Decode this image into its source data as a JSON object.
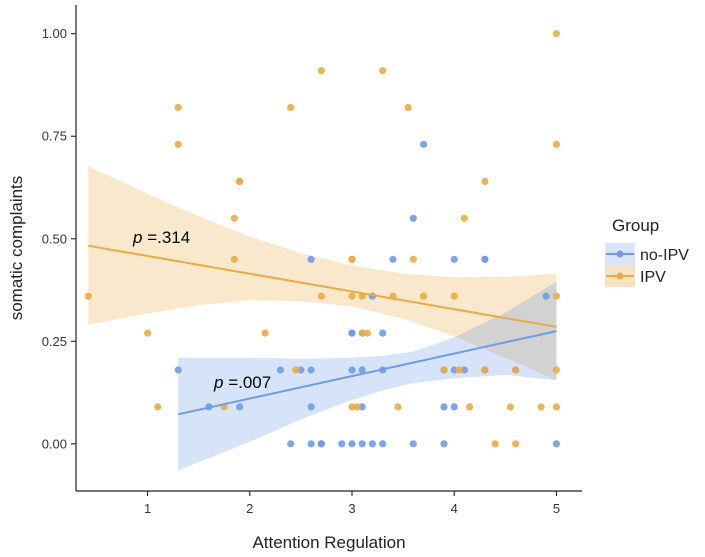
{
  "chart_data": {
    "type": "scatter",
    "title": "",
    "xlabel": "Attention Regulation",
    "ylabel": "somatic complaints",
    "xlim": [
      0.3,
      5.25
    ],
    "ylim": [
      -0.115,
      1.07
    ],
    "x_ticks": [
      1,
      2,
      3,
      4,
      5
    ],
    "y_ticks": [
      0.0,
      0.25,
      0.5,
      0.75,
      1.0
    ],
    "x_tick_labels": [
      "1",
      "2",
      "3",
      "4",
      "5"
    ],
    "y_tick_labels": [
      "0.00",
      "0.25",
      "0.50",
      "0.75",
      "1.00"
    ],
    "grid": false,
    "legend": {
      "title": "Group",
      "position": "right",
      "entries": [
        "no-IPV",
        "IPV"
      ]
    },
    "annotations": [
      {
        "prefix": "p",
        "text": " =.314",
        "x": 0.75,
        "y": 0.49,
        "series": "IPV"
      },
      {
        "prefix": "p",
        "text": " =.007",
        "x": 1.57,
        "y": 0.142,
        "series": "no-IPV"
      }
    ],
    "series": [
      {
        "name": "no-IPV",
        "color": "#6f9ce6",
        "fit": {
          "x_start": 1.3,
          "x_end": 5.0,
          "y_start": 0.072,
          "y_end": 0.275
        },
        "ci": [
          {
            "x": 1.3,
            "lo": -0.065,
            "hi": 0.21
          },
          {
            "x": 2.0,
            "lo": 0.005,
            "hi": 0.21
          },
          {
            "x": 2.5,
            "lo": 0.06,
            "hi": 0.207
          },
          {
            "x": 3.0,
            "lo": 0.107,
            "hi": 0.21
          },
          {
            "x": 3.3,
            "lo": 0.13,
            "hi": 0.215
          },
          {
            "x": 3.6,
            "lo": 0.148,
            "hi": 0.225
          },
          {
            "x": 4.0,
            "lo": 0.16,
            "hi": 0.26
          },
          {
            "x": 4.5,
            "lo": 0.168,
            "hi": 0.32
          },
          {
            "x": 5.0,
            "lo": 0.155,
            "hi": 0.395
          }
        ],
        "points": [
          [
            1.3,
            0.18
          ],
          [
            1.6,
            0.09
          ],
          [
            1.9,
            0.09
          ],
          [
            2.3,
            0.18
          ],
          [
            2.4,
            0.0
          ],
          [
            2.5,
            0.18
          ],
          [
            2.6,
            0.45
          ],
          [
            2.6,
            0.18
          ],
          [
            2.6,
            0.09
          ],
          [
            2.6,
            0.0
          ],
          [
            2.7,
            0.0
          ],
          [
            2.7,
            0.0
          ],
          [
            2.9,
            0.0
          ],
          [
            3.0,
            0.27
          ],
          [
            3.0,
            0.27
          ],
          [
            3.0,
            0.18
          ],
          [
            3.0,
            0.0
          ],
          [
            3.1,
            0.27
          ],
          [
            3.1,
            0.18
          ],
          [
            3.1,
            0.09
          ],
          [
            3.1,
            0.0
          ],
          [
            3.2,
            0.36
          ],
          [
            3.2,
            0.0
          ],
          [
            3.3,
            0.27
          ],
          [
            3.3,
            0.18
          ],
          [
            3.3,
            0.0
          ],
          [
            3.4,
            0.45
          ],
          [
            3.6,
            0.55
          ],
          [
            3.6,
            0.0
          ],
          [
            3.7,
            0.73
          ],
          [
            3.9,
            0.18
          ],
          [
            3.9,
            0.09
          ],
          [
            3.9,
            0.0
          ],
          [
            4.0,
            0.45
          ],
          [
            4.0,
            0.18
          ],
          [
            4.0,
            0.09
          ],
          [
            4.1,
            0.18
          ],
          [
            4.3,
            0.45
          ],
          [
            4.3,
            0.45
          ],
          [
            4.3,
            0.18
          ],
          [
            4.6,
            0.18
          ],
          [
            4.9,
            0.36
          ],
          [
            5.0,
            0.0
          ]
        ]
      },
      {
        "name": "IPV",
        "color": "#e9ac44",
        "fit": {
          "x_start": 0.42,
          "x_end": 5.0,
          "y_start": 0.483,
          "y_end": 0.285
        },
        "ci": [
          {
            "x": 0.42,
            "lo": 0.29,
            "hi": 0.677
          },
          {
            "x": 1.0,
            "lo": 0.318,
            "hi": 0.61
          },
          {
            "x": 1.5,
            "lo": 0.338,
            "hi": 0.555
          },
          {
            "x": 2.0,
            "lo": 0.35,
            "hi": 0.505
          },
          {
            "x": 2.5,
            "lo": 0.348,
            "hi": 0.465
          },
          {
            "x": 3.0,
            "lo": 0.335,
            "hi": 0.435
          },
          {
            "x": 3.5,
            "lo": 0.305,
            "hi": 0.415
          },
          {
            "x": 4.0,
            "lo": 0.262,
            "hi": 0.406
          },
          {
            "x": 4.5,
            "lo": 0.21,
            "hi": 0.407
          },
          {
            "x": 5.0,
            "lo": 0.155,
            "hi": 0.415
          }
        ],
        "points": [
          [
            0.42,
            0.36
          ],
          [
            1.0,
            0.27
          ],
          [
            1.1,
            0.09
          ],
          [
            1.3,
            0.82
          ],
          [
            1.3,
            0.73
          ],
          [
            1.75,
            0.09
          ],
          [
            1.85,
            0.55
          ],
          [
            1.85,
            0.45
          ],
          [
            1.9,
            0.64
          ],
          [
            1.9,
            0.64
          ],
          [
            2.15,
            0.27
          ],
          [
            2.4,
            0.82
          ],
          [
            2.45,
            0.18
          ],
          [
            2.7,
            0.91
          ],
          [
            2.7,
            0.36
          ],
          [
            3.0,
            0.45
          ],
          [
            3.0,
            0.45
          ],
          [
            3.0,
            0.36
          ],
          [
            3.0,
            0.09
          ],
          [
            3.05,
            0.09
          ],
          [
            3.1,
            0.36
          ],
          [
            3.1,
            0.27
          ],
          [
            3.15,
            0.27
          ],
          [
            3.3,
            0.91
          ],
          [
            3.4,
            0.36
          ],
          [
            3.45,
            0.09
          ],
          [
            3.55,
            0.82
          ],
          [
            3.6,
            0.45
          ],
          [
            3.7,
            0.36
          ],
          [
            3.9,
            0.18
          ],
          [
            4.0,
            0.36
          ],
          [
            4.05,
            0.18
          ],
          [
            4.1,
            0.55
          ],
          [
            4.15,
            0.09
          ],
          [
            4.3,
            0.64
          ],
          [
            4.3,
            0.18
          ],
          [
            4.4,
            0.0
          ],
          [
            4.55,
            0.09
          ],
          [
            4.6,
            0.18
          ],
          [
            4.6,
            0.0
          ],
          [
            4.85,
            0.09
          ],
          [
            5.0,
            1.0
          ],
          [
            5.0,
            0.73
          ],
          [
            5.0,
            0.36
          ],
          [
            5.0,
            0.18
          ],
          [
            5.0,
            0.09
          ]
        ]
      }
    ]
  }
}
